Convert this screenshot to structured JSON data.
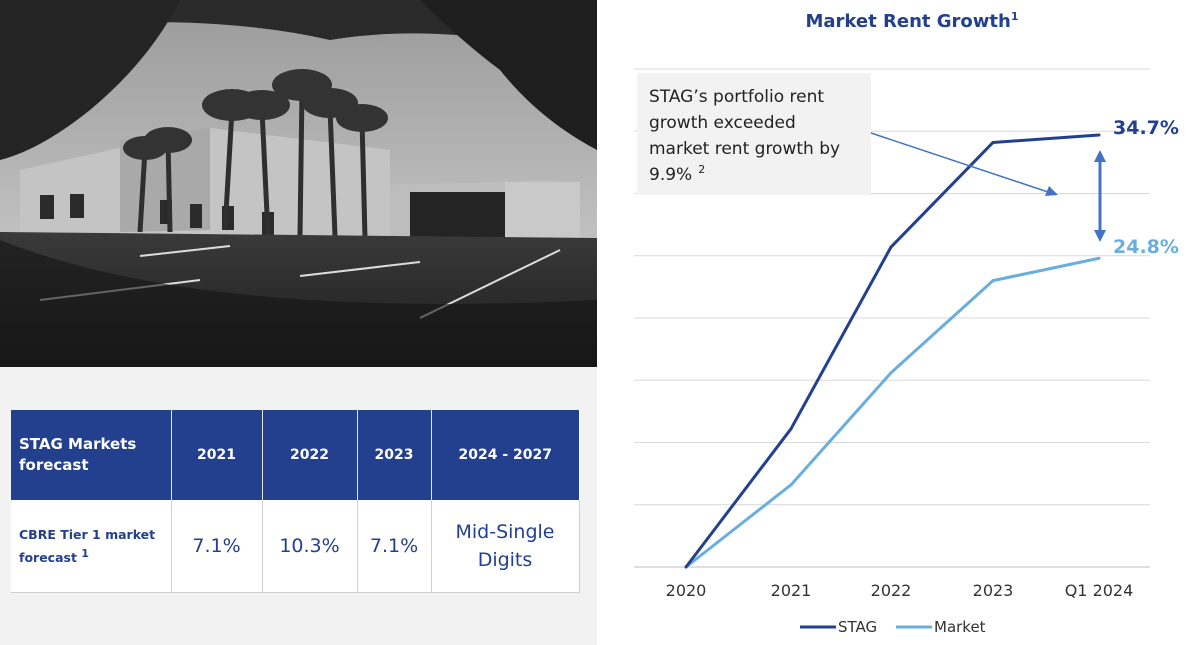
{
  "table": {
    "headers": [
      "STAG Markets forecast",
      "2021",
      "2022",
      "2023",
      "2024 - 2027"
    ],
    "row_label": "CBRE Tier 1 market forecast",
    "row_label_sup": "1",
    "values": [
      "7.1%",
      "10.3%",
      "7.1%"
    ],
    "last_value_lines": [
      "Mid-Single",
      "Digits"
    ]
  },
  "chart_data": {
    "type": "line",
    "title": "Market Rent Growth",
    "title_sup": "1",
    "categories": [
      "2020",
      "2021",
      "2022",
      "2023",
      "Q1 2024"
    ],
    "ylim": [
      0,
      40
    ],
    "grid": true,
    "legend": "bottom",
    "series": [
      {
        "name": "STAG",
        "color": "#23408e",
        "values": [
          0,
          11.1,
          25.7,
          34.1,
          34.7
        ]
      },
      {
        "name": "Market",
        "color": "#6aaee0",
        "values": [
          0,
          6.6,
          15.6,
          23.0,
          24.8
        ]
      }
    ],
    "end_labels": [
      "34.7%",
      "24.8%"
    ],
    "annotation": {
      "lines": [
        "STAG’s portfolio rent",
        "growth exceeded",
        "market rent growth by",
        "9.9%"
      ],
      "sup": "2"
    }
  },
  "colors": {
    "navy": "#23408e",
    "light_blue": "#6aaee0",
    "panel_gray": "#f2f2f2",
    "grid": "#d9d9d9",
    "arrow": "#4472c4"
  }
}
